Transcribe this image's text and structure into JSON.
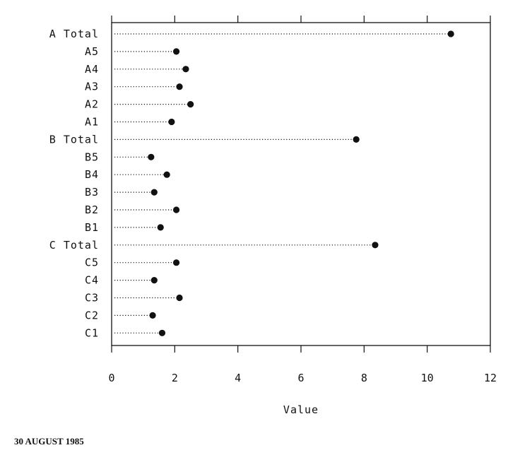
{
  "chart_data": {
    "type": "dot",
    "xlabel": "Value",
    "xlim": [
      0,
      12
    ],
    "xticks": [
      0,
      2,
      4,
      6,
      8,
      10,
      12
    ],
    "grid": false,
    "categories": [
      "A Total",
      "A5",
      "A4",
      "A3",
      "A2",
      "A1",
      "B Total",
      "B5",
      "B4",
      "B3",
      "B2",
      "B1",
      "C Total",
      "C5",
      "C4",
      "C3",
      "C2",
      "C1"
    ],
    "values": [
      10.75,
      2.05,
      2.35,
      2.15,
      2.5,
      1.9,
      7.75,
      1.25,
      1.75,
      1.35,
      2.05,
      1.55,
      8.35,
      2.05,
      1.35,
      2.15,
      1.3,
      1.6
    ]
  },
  "page": {
    "footer": "30 AUGUST 1985"
  }
}
